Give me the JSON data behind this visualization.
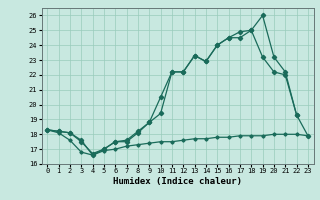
{
  "xlabel": "Humidex (Indice chaleur)",
  "bg_color": "#c8e8e0",
  "grid_color": "#99ccbb",
  "line_color": "#1a6b5a",
  "line1_x": [
    0,
    1,
    2,
    3,
    4,
    5,
    6,
    7,
    8,
    9,
    10,
    11,
    12,
    13,
    14,
    15,
    16,
    17,
    18,
    19,
    20,
    21,
    22,
    23
  ],
  "line1_y": [
    18.3,
    18.2,
    18.1,
    17.6,
    16.6,
    17.0,
    17.5,
    17.6,
    18.2,
    18.8,
    20.5,
    22.2,
    22.2,
    23.3,
    22.9,
    24.0,
    24.5,
    24.9,
    25.0,
    26.0,
    23.2,
    22.2,
    19.3,
    17.9
  ],
  "line2_x": [
    0,
    1,
    2,
    3,
    4,
    5,
    6,
    7,
    8,
    9,
    10,
    11,
    12,
    13,
    14,
    15,
    16,
    17,
    18,
    19,
    20,
    21,
    22
  ],
  "line2_y": [
    18.3,
    18.2,
    18.1,
    17.5,
    16.7,
    17.0,
    17.5,
    17.5,
    18.1,
    18.8,
    19.4,
    22.2,
    22.2,
    23.3,
    22.9,
    24.0,
    24.5,
    24.5,
    25.0,
    23.2,
    22.2,
    22.0,
    19.3
  ],
  "line3_x": [
    0,
    1,
    2,
    3,
    4,
    5,
    6,
    7,
    8,
    9,
    10,
    11,
    12,
    13,
    14,
    15,
    16,
    17,
    18,
    19,
    20,
    21,
    22,
    23
  ],
  "line3_y": [
    18.3,
    18.1,
    17.6,
    16.8,
    16.6,
    16.9,
    17.0,
    17.2,
    17.3,
    17.4,
    17.5,
    17.5,
    17.6,
    17.7,
    17.7,
    17.8,
    17.8,
    17.9,
    17.9,
    17.9,
    18.0,
    18.0,
    18.0,
    17.9
  ],
  "xlim": [
    -0.5,
    23.5
  ],
  "ylim": [
    16,
    26.5
  ],
  "yticks": [
    16,
    17,
    18,
    19,
    20,
    21,
    22,
    23,
    24,
    25,
    26
  ],
  "xticks": [
    0,
    1,
    2,
    3,
    4,
    5,
    6,
    7,
    8,
    9,
    10,
    11,
    12,
    13,
    14,
    15,
    16,
    17,
    18,
    19,
    20,
    21,
    22,
    23
  ]
}
